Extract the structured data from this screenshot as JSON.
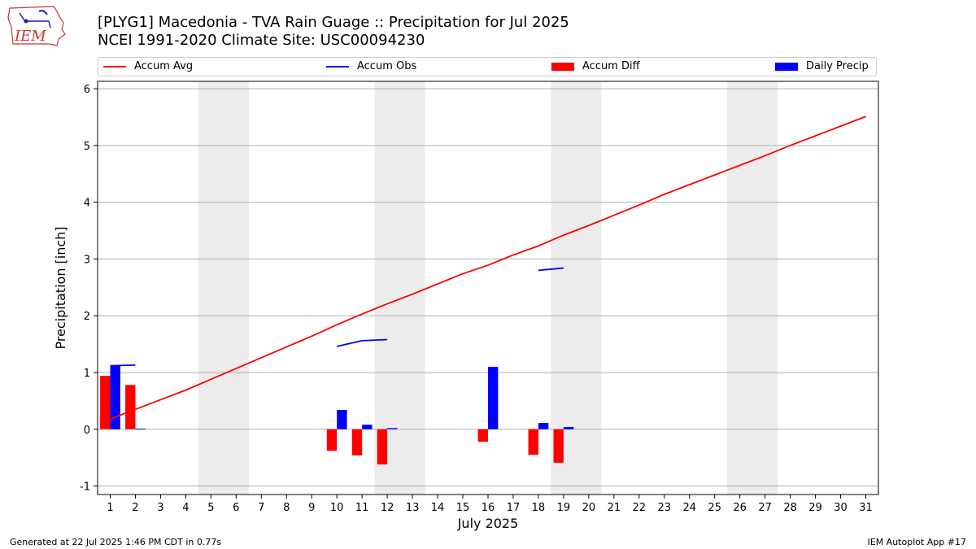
{
  "logo": {
    "text": "IEM"
  },
  "title": {
    "line1": "[PLYG1] Macedonia - TVA Rain Guage :: Precipitation for Jul 2025",
    "line2": "NCEI 1991-2020 Climate Site: USC00094230"
  },
  "legend": [
    {
      "label": "Accum Avg",
      "kind": "line",
      "color": "#ff0000"
    },
    {
      "label": "Accum Obs",
      "kind": "line",
      "color": "#0000ff"
    },
    {
      "label": "Accum Diff",
      "kind": "box",
      "color": "#ff0000"
    },
    {
      "label": "Daily Precip",
      "kind": "box",
      "color": "#0000ff"
    }
  ],
  "footer": {
    "left": "Generated at 22 Jul 2025 1:46 PM CDT in 0.77s",
    "right": "IEM Autoplot App #17"
  },
  "chart_data": {
    "type": "bar",
    "xlabel": "July 2025",
    "ylabel": "Precipitation [inch]",
    "ylim": [
      -1.15,
      6.13
    ],
    "yticks": [
      -1,
      0,
      1,
      2,
      3,
      4,
      5,
      6
    ],
    "xticks": [
      1,
      2,
      3,
      4,
      5,
      6,
      7,
      8,
      9,
      10,
      11,
      12,
      13,
      14,
      15,
      16,
      17,
      18,
      19,
      20,
      21,
      22,
      23,
      24,
      25,
      26,
      27,
      28,
      29,
      30,
      31
    ],
    "grid": "horizontal",
    "shaded_weekends": [
      [
        5,
        6
      ],
      [
        12,
        13
      ],
      [
        19,
        20
      ],
      [
        26,
        27
      ]
    ],
    "accum_avg": {
      "days": [
        1,
        2,
        3,
        4,
        5,
        6,
        7,
        8,
        9,
        10,
        11,
        12,
        13,
        14,
        15,
        16,
        17,
        18,
        19,
        20,
        21,
        22,
        23,
        24,
        25,
        26,
        27,
        28,
        29,
        30,
        31
      ],
      "values": [
        0.18,
        0.35,
        0.52,
        0.69,
        0.88,
        1.07,
        1.26,
        1.45,
        1.64,
        1.84,
        2.03,
        2.21,
        2.38,
        2.56,
        2.74,
        2.89,
        3.07,
        3.23,
        3.42,
        3.59,
        3.77,
        3.95,
        4.14,
        4.31,
        4.48,
        4.65,
        4.82,
        5.0,
        5.17,
        5.34,
        5.51
      ]
    },
    "accum_obs": [
      {
        "days": [
          1,
          2
        ],
        "values": [
          1.12,
          1.13
        ]
      },
      {
        "days": [
          10,
          11,
          12
        ],
        "values": [
          1.46,
          1.56,
          1.58
        ]
      },
      {
        "days": [
          18,
          19
        ],
        "values": [
          2.8,
          2.84
        ]
      }
    ],
    "accum_diff": {
      "days": [
        1,
        2,
        10,
        11,
        12,
        16,
        18,
        19
      ],
      "values": [
        0.94,
        0.78,
        -0.38,
        -0.46,
        -0.62,
        -0.22,
        -0.45,
        -0.59
      ]
    },
    "daily_precip": {
      "days": [
        1,
        2,
        10,
        11,
        12,
        16,
        18,
        19
      ],
      "values": [
        1.12,
        0.01,
        0.34,
        0.08,
        0.02,
        1.1,
        0.11,
        0.04
      ]
    }
  }
}
